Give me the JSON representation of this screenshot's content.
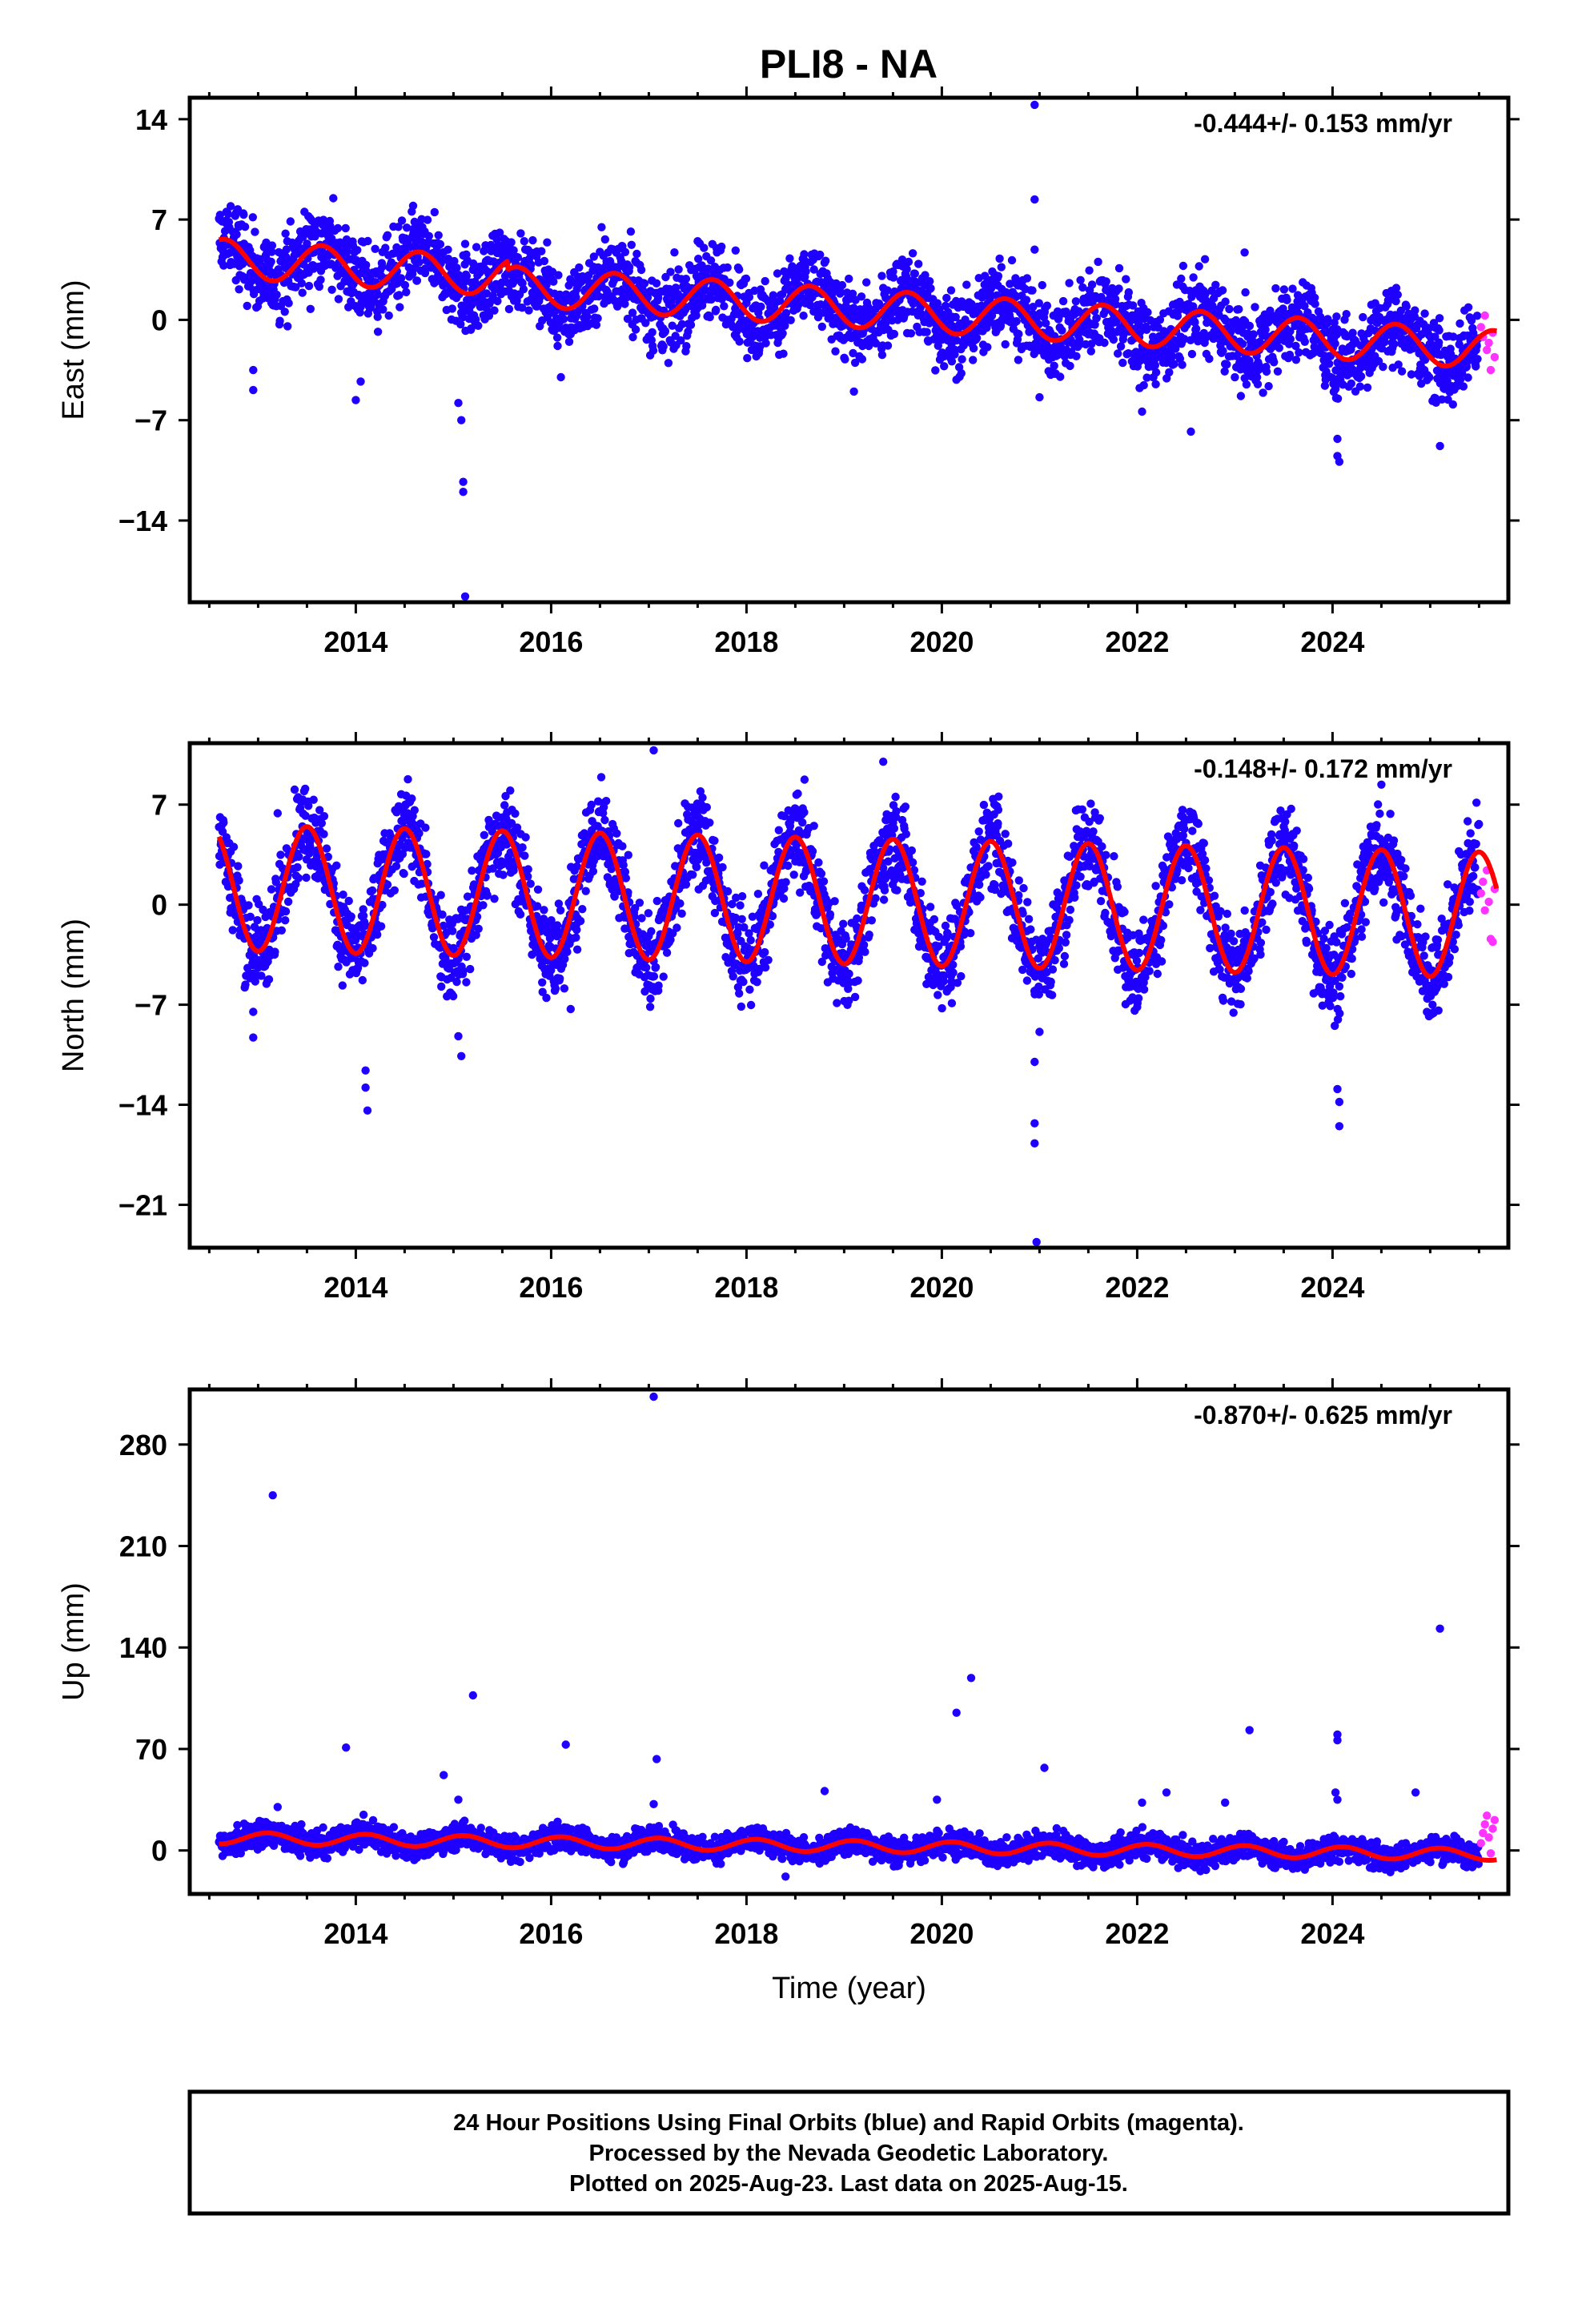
{
  "title": "PLI8 - NA",
  "colors": {
    "final": "#1f00ff",
    "rapid": "#ff33ff",
    "model": "#ff0000",
    "frame": "#000000"
  },
  "chart_data": [
    {
      "type": "scatter",
      "component": "east",
      "ylabel": "East (mm)",
      "rate_text": "-0.444+/- 0.153 mm/yr",
      "xlim": [
        2012.3,
        2025.8
      ],
      "ylim": [
        -19.7,
        15.5
      ],
      "yticks": [
        -14,
        -7,
        0,
        7,
        14
      ],
      "ytick_labels": [
        "−14",
        "−7",
        "0",
        "7",
        "14"
      ],
      "xticks": [
        2014,
        2016,
        2018,
        2020,
        2022,
        2024
      ],
      "xtick_labels": [
        "2014",
        "2016",
        "2018",
        "2020",
        "2022",
        "2024"
      ],
      "xlabel": "",
      "model": {
        "t0": 2012.6,
        "v0": 4.3,
        "rate": -0.444,
        "annual": 1.35,
        "peak": 0.65,
        "steps": [
          [
            2015.55,
            -0.6
          ]
        ]
      },
      "scatter_sd": 1.4,
      "final_end": 2025.5,
      "rapid_points": [
        [
          2025.52,
          -0.5
        ],
        [
          2025.54,
          -1.2
        ],
        [
          2025.56,
          0.3
        ],
        [
          2025.58,
          -2.1
        ],
        [
          2025.6,
          -1.6
        ],
        [
          2025.62,
          -3.5
        ],
        [
          2025.64,
          -0.9
        ],
        [
          2025.66,
          -2.6
        ]
      ],
      "outliers": [
        [
          2012.95,
          -3.5
        ],
        [
          2012.95,
          -4.9
        ],
        [
          2014.0,
          -5.6
        ],
        [
          2014.05,
          -4.3
        ],
        [
          2015.05,
          -5.8
        ],
        [
          2015.08,
          -7.0
        ],
        [
          2015.1,
          -11.3
        ],
        [
          2015.1,
          -12.0
        ],
        [
          2015.12,
          -19.3
        ],
        [
          2015.12,
          5.3
        ],
        [
          2015.1,
          4.5
        ],
        [
          2020.95,
          8.4
        ],
        [
          2020.95,
          4.9
        ],
        [
          2020.95,
          15.0
        ],
        [
          2022.55,
          -7.8
        ],
        [
          2023.1,
          4.7
        ],
        [
          2024.05,
          -8.3
        ],
        [
          2024.05,
          -9.5
        ],
        [
          2024.07,
          -9.9
        ],
        [
          2025.1,
          -8.8
        ],
        [
          2019.1,
          -5.0
        ],
        [
          2016.1,
          -4.0
        ],
        [
          2021.0,
          -5.4
        ],
        [
          2022.05,
          -6.4
        ]
      ]
    },
    {
      "type": "scatter",
      "component": "north",
      "ylabel": "North (mm)",
      "rate_text": "-0.148+/- 0.172 mm/yr",
      "xlim": [
        2012.3,
        2025.8
      ],
      "ylim": [
        -24.0,
        11.3
      ],
      "yticks": [
        -21,
        -14,
        -7,
        0,
        7
      ],
      "ytick_labels": [
        "−21",
        "−14",
        "−7",
        "0",
        "7"
      ],
      "xticks": [
        2014,
        2016,
        2018,
        2020,
        2022,
        2024
      ],
      "xtick_labels": [
        "2014",
        "2016",
        "2018",
        "2020",
        "2022",
        "2024"
      ],
      "xlabel": "",
      "model": {
        "t0": 2012.6,
        "v0": 1.2,
        "rate": -0.148,
        "annual": 4.4,
        "peak": 0.5,
        "steps": []
      },
      "scatter_sd": 1.6,
      "final_end": 2025.5,
      "rapid_points": [
        [
          2025.52,
          0.8
        ],
        [
          2025.54,
          1.6
        ],
        [
          2025.56,
          -0.4
        ],
        [
          2025.58,
          2.4
        ],
        [
          2025.6,
          0.2
        ],
        [
          2025.62,
          -2.4
        ],
        [
          2025.64,
          -2.6
        ],
        [
          2025.66,
          1.1
        ]
      ],
      "outliers": [
        [
          2012.95,
          -7.5
        ],
        [
          2012.95,
          -9.3
        ],
        [
          2014.1,
          -11.6
        ],
        [
          2014.1,
          -12.8
        ],
        [
          2014.12,
          -14.4
        ],
        [
          2015.05,
          -9.2
        ],
        [
          2015.08,
          -10.6
        ],
        [
          2017.05,
          10.8
        ],
        [
          2019.4,
          10.0
        ],
        [
          2020.95,
          -11.0
        ],
        [
          2020.95,
          -15.3
        ],
        [
          2020.95,
          -16.7
        ],
        [
          2020.97,
          -23.6
        ],
        [
          2024.05,
          -12.9
        ],
        [
          2024.07,
          -15.5
        ],
        [
          2024.07,
          -13.8
        ],
        [
          2024.5,
          8.4
        ],
        [
          2013.2,
          6.4
        ],
        [
          2016.2,
          -7.3
        ],
        [
          2021.0,
          -8.9
        ]
      ]
    },
    {
      "type": "scatter",
      "component": "up",
      "ylabel": "Up (mm)",
      "rate_text": "-0.870+/- 0.625 mm/yr",
      "xlim": [
        2012.3,
        2025.8
      ],
      "ylim": [
        -30,
        318
      ],
      "yticks": [
        0,
        70,
        140,
        210,
        280
      ],
      "ytick_labels": [
        "0",
        "70",
        "140",
        "210",
        "280"
      ],
      "xticks": [
        2014,
        2016,
        2018,
        2020,
        2022,
        2024
      ],
      "xtick_labels": [
        "2014",
        "2016",
        "2018",
        "2020",
        "2022",
        "2024"
      ],
      "xlabel": "Time (year)",
      "model": {
        "t0": 2012.6,
        "v0": 8.5,
        "rate": -0.87,
        "annual": 4.0,
        "peak": 0.1,
        "steps": []
      },
      "scatter_sd": 4.5,
      "final_end": 2025.5,
      "rapid_points": [
        [
          2025.52,
          5
        ],
        [
          2025.54,
          12
        ],
        [
          2025.56,
          18
        ],
        [
          2025.58,
          24
        ],
        [
          2025.6,
          9
        ],
        [
          2025.62,
          -2
        ],
        [
          2025.64,
          15
        ],
        [
          2025.66,
          21
        ]
      ],
      "outliers": [
        [
          2013.15,
          245
        ],
        [
          2013.9,
          71
        ],
        [
          2014.9,
          52
        ],
        [
          2015.05,
          35
        ],
        [
          2015.2,
          107
        ],
        [
          2016.15,
          73
        ],
        [
          2017.05,
          313
        ],
        [
          2017.08,
          63
        ],
        [
          2017.05,
          32
        ],
        [
          2018.8,
          41
        ],
        [
          2019.95,
          35
        ],
        [
          2020.15,
          95
        ],
        [
          2020.3,
          119
        ],
        [
          2021.05,
          57
        ],
        [
          2022.3,
          40
        ],
        [
          2022.05,
          33
        ],
        [
          2022.9,
          33
        ],
        [
          2023.15,
          83
        ],
        [
          2024.05,
          80
        ],
        [
          2024.05,
          76
        ],
        [
          2024.03,
          40
        ],
        [
          2024.05,
          35
        ],
        [
          2024.85,
          40
        ],
        [
          2025.1,
          153
        ],
        [
          2013.2,
          30
        ],
        [
          2018.4,
          -18
        ]
      ]
    }
  ],
  "footer": {
    "line1": "24 Hour Positions Using Final Orbits (blue) and Rapid Orbits (magenta).",
    "line2": "Processed by the Nevada Geodetic Laboratory.",
    "line3": "Plotted on 2025-Aug-23. Last data on 2025-Aug-15."
  }
}
